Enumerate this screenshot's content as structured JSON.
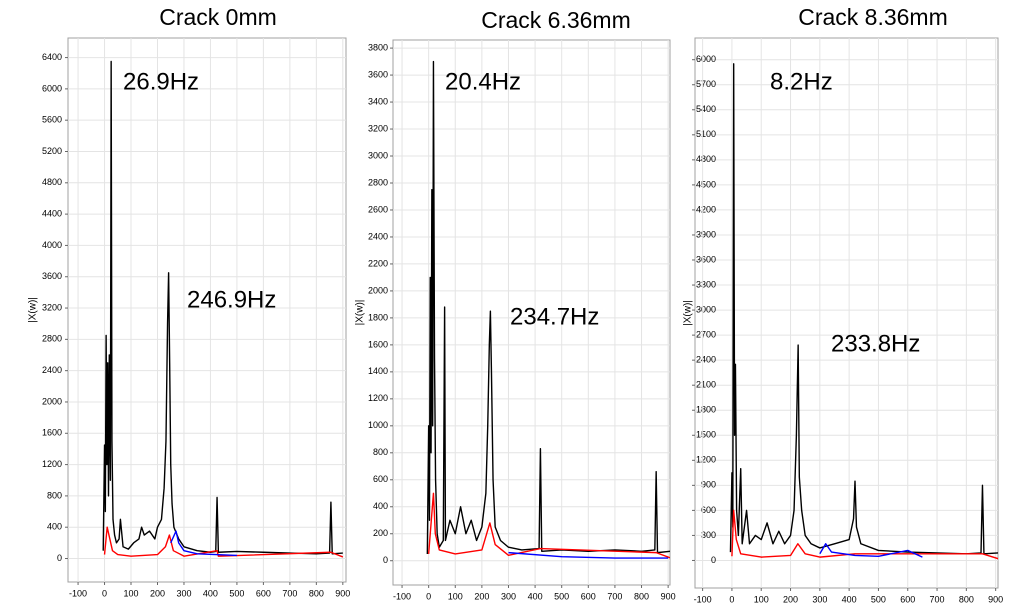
{
  "chart_data": [
    {
      "type": "line",
      "title": "Crack 0mm",
      "y_label": "|X(w)|",
      "annotations": [
        "26.9Hz",
        "246.9Hz"
      ],
      "grid": true,
      "xlim": [
        -138,
        912
      ],
      "xticks": [
        -100,
        0,
        100,
        200,
        300,
        400,
        500,
        600,
        700,
        800,
        900
      ],
      "ylim": [
        -300,
        6650
      ],
      "yticks": [
        0,
        400,
        800,
        1200,
        1600,
        2000,
        2400,
        2800,
        3200,
        3600,
        4000,
        4400,
        4800,
        5200,
        5600,
        6000,
        6400
      ],
      "series": [
        {
          "color": "#000000",
          "x": [
            -5,
            0,
            3,
            6,
            9,
            12,
            15,
            18,
            22,
            25,
            28,
            32,
            38,
            45,
            55,
            60,
            70,
            90,
            110,
            130,
            140,
            150,
            170,
            190,
            200,
            215,
            225,
            232,
            238,
            242,
            246,
            250,
            255,
            262,
            280,
            300,
            350,
            400,
            420,
            425,
            430,
            500,
            600,
            700,
            800,
            850,
            855,
            860,
            900
          ],
          "values": [
            100,
            1450,
            600,
            2850,
            1200,
            2500,
            800,
            2600,
            1000,
            6350,
            1500,
            500,
            300,
            200,
            250,
            500,
            150,
            120,
            200,
            250,
            400,
            300,
            350,
            250,
            400,
            500,
            900,
            1500,
            3000,
            3650,
            2500,
            1200,
            700,
            400,
            250,
            150,
            100,
            80,
            90,
            780,
            80,
            90,
            80,
            70,
            60,
            70,
            720,
            60,
            70
          ]
        },
        {
          "color": "#ff0000",
          "x": [
            0,
            10,
            20,
            30,
            50,
            100,
            200,
            230,
            245,
            260,
            300,
            425,
            430,
            855,
            900
          ],
          "values": [
            50,
            400,
            250,
            100,
            50,
            30,
            50,
            150,
            300,
            100,
            30,
            100,
            30,
            80,
            20
          ]
        },
        {
          "color": "#0000ff",
          "x": [
            250,
            270,
            280,
            300,
            350,
            420,
            500
          ],
          "values": [
            200,
            350,
            200,
            100,
            60,
            50,
            40
          ]
        }
      ]
    },
    {
      "type": "line",
      "title": "Crack 6.36mm",
      "y_label": "|X(w)|",
      "annotations": [
        "20.4Hz",
        "234.7Hz"
      ],
      "grid": true,
      "xlim": [
        -134,
        907
      ],
      "xticks": [
        -100,
        0,
        100,
        200,
        300,
        400,
        500,
        600,
        700,
        800,
        900
      ],
      "ylim": [
        -180,
        3860
      ],
      "yticks": [
        0,
        200,
        400,
        600,
        800,
        1000,
        1200,
        1400,
        1600,
        1800,
        2000,
        2200,
        2400,
        2600,
        2800,
        3000,
        3200,
        3400,
        3600,
        3800
      ],
      "series": [
        {
          "color": "#000000",
          "x": [
            -5,
            0,
            3,
            6,
            9,
            12,
            15,
            18,
            22,
            26,
            32,
            40,
            55,
            60,
            63,
            80,
            100,
            120,
            140,
            160,
            180,
            200,
            215,
            222,
            228,
            232,
            236,
            242,
            250,
            270,
            300,
            350,
            415,
            420,
            425,
            500,
            600,
            700,
            800,
            850,
            855,
            860,
            910
          ],
          "values": [
            50,
            1000,
            300,
            2100,
            800,
            2750,
            1000,
            3700,
            1500,
            600,
            200,
            100,
            150,
            1880,
            150,
            300,
            200,
            400,
            200,
            300,
            150,
            250,
            500,
            1000,
            1600,
            1850,
            1400,
            600,
            250,
            150,
            100,
            80,
            90,
            830,
            70,
            80,
            70,
            80,
            70,
            80,
            660,
            60,
            70
          ]
        },
        {
          "color": "#ff0000",
          "x": [
            0,
            10,
            18,
            25,
            40,
            100,
            200,
            230,
            250,
            300,
            420,
            855,
            910
          ],
          "values": [
            50,
            300,
            500,
            200,
            80,
            50,
            80,
            280,
            120,
            40,
            90,
            60,
            20
          ]
        },
        {
          "color": "#0000ff",
          "x": [
            300,
            500,
            700,
            900
          ],
          "values": [
            60,
            30,
            20,
            20
          ]
        }
      ]
    },
    {
      "type": "line",
      "title": "Crack 8.36mm",
      "y_label": "|X(w)|",
      "annotations": [
        "8.2Hz",
        "233.8Hz"
      ],
      "grid": true,
      "xlim": [
        -126,
        908
      ],
      "xticks": [
        -100,
        0,
        100,
        200,
        300,
        400,
        500,
        600,
        700,
        800,
        900
      ],
      "ylim": [
        -330,
        6260
      ],
      "yticks": [
        0,
        300,
        600,
        900,
        1200,
        1500,
        1800,
        2100,
        2400,
        2700,
        3000,
        3300,
        3600,
        3900,
        4200,
        4500,
        4800,
        5100,
        5400,
        5700,
        6000
      ],
      "series": [
        {
          "color": "#000000",
          "x": [
            -5,
            0,
            3,
            6,
            9,
            12,
            16,
            22,
            30,
            35,
            50,
            60,
            80,
            100,
            120,
            140,
            160,
            180,
            200,
            212,
            220,
            226,
            230,
            238,
            250,
            270,
            300,
            350,
            400,
            415,
            420,
            425,
            440,
            500,
            600,
            700,
            800,
            850,
            855,
            860,
            910
          ],
          "values": [
            100,
            1050,
            400,
            5950,
            1500,
            2350,
            600,
            300,
            1100,
            200,
            600,
            200,
            300,
            250,
            450,
            200,
            350,
            200,
            300,
            600,
            1500,
            2580,
            1000,
            600,
            300,
            200,
            150,
            200,
            250,
            500,
            950,
            400,
            200,
            120,
            100,
            90,
            80,
            90,
            900,
            80,
            90
          ]
        },
        {
          "color": "#ff0000",
          "x": [
            0,
            6,
            15,
            30,
            100,
            200,
            225,
            250,
            300,
            420,
            855,
            910
          ],
          "values": [
            50,
            600,
            250,
            80,
            40,
            60,
            200,
            80,
            40,
            80,
            80,
            20
          ]
        },
        {
          "color": "#0000ff",
          "x": [
            300,
            320,
            340,
            420,
            500,
            600,
            650
          ],
          "values": [
            80,
            200,
            100,
            60,
            50,
            120,
            40
          ]
        }
      ]
    }
  ]
}
